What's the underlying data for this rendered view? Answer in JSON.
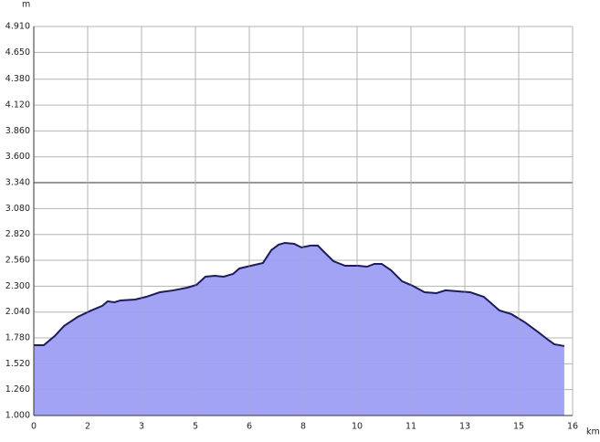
{
  "chart_data": {
    "type": "area",
    "y_label": "m",
    "x_label": "km",
    "x": [
      0,
      0.3,
      0.63,
      0.91,
      1.32,
      1.73,
      2.06,
      2.22,
      2.42,
      2.61,
      3.05,
      3.38,
      3.79,
      4.2,
      4.61,
      4.89,
      5.16,
      5.44,
      5.71,
      5.99,
      6.18,
      6.53,
      6.89,
      7.14,
      7.36,
      7.55,
      7.83,
      8.05,
      8.32,
      8.54,
      8.73,
      9.01,
      9.36,
      9.75,
      10.02,
      10.24,
      10.46,
      10.74,
      11.07,
      11.39,
      11.75,
      12.11,
      12.38,
      12.71,
      13.12,
      13.53,
      14.0,
      14.36,
      14.77,
      15.18,
      15.46,
      15.65,
      15.95
    ],
    "values": [
      1707,
      1707,
      1799,
      1900,
      1991,
      2056,
      2102,
      2148,
      2138,
      2157,
      2166,
      2193,
      2239,
      2258,
      2285,
      2313,
      2395,
      2404,
      2395,
      2423,
      2478,
      2505,
      2533,
      2662,
      2717,
      2735,
      2726,
      2689,
      2708,
      2708,
      2643,
      2551,
      2505,
      2505,
      2496,
      2524,
      2524,
      2460,
      2350,
      2304,
      2239,
      2230,
      2258,
      2249,
      2239,
      2193,
      2056,
      2019,
      1936,
      1835,
      1762,
      1716,
      1698
    ],
    "color": "#9e9ef6",
    "line_color": "#1c1c5e",
    "xlim": [
      0,
      16.2
    ],
    "xticks": [
      0,
      {
        "value": 1.62,
        "label": "2"
      },
      {
        "value": 3.24,
        "label": "3"
      },
      {
        "value": 4.86,
        "label": "5"
      },
      {
        "value": 6.48,
        "label": "6"
      },
      {
        "value": 8.1,
        "label": "8"
      },
      {
        "value": 9.72,
        "label": "10"
      },
      {
        "value": 11.34,
        "label": "11"
      },
      {
        "value": 12.96,
        "label": "13"
      },
      {
        "value": 14.58,
        "label": "15"
      },
      {
        "value": 16.2,
        "label": "16"
      }
    ],
    "ylim": [
      1000,
      4910
    ],
    "yticks": [
      {
        "value": 1000,
        "label": "1.000"
      },
      {
        "value": 1260,
        "label": "1.260"
      },
      {
        "value": 1520,
        "label": "1.520"
      },
      {
        "value": 1780,
        "label": "1.780"
      },
      {
        "value": 2040,
        "label": "2.040"
      },
      {
        "value": 2300,
        "label": "2.300"
      },
      {
        "value": 2560,
        "label": "2.560"
      },
      {
        "value": 2820,
        "label": "2.820"
      },
      {
        "value": 3080,
        "label": "3.080"
      },
      {
        "value": 3340,
        "label": "3.340"
      },
      {
        "value": 3600,
        "label": "3.600"
      },
      {
        "value": 3860,
        "label": "3.860"
      },
      {
        "value": 4120,
        "label": "4.120"
      },
      {
        "value": 4380,
        "label": "4.380"
      },
      {
        "value": 4650,
        "label": "4.650"
      },
      {
        "value": 4910,
        "label": "4.910"
      }
    ],
    "grid": true
  }
}
